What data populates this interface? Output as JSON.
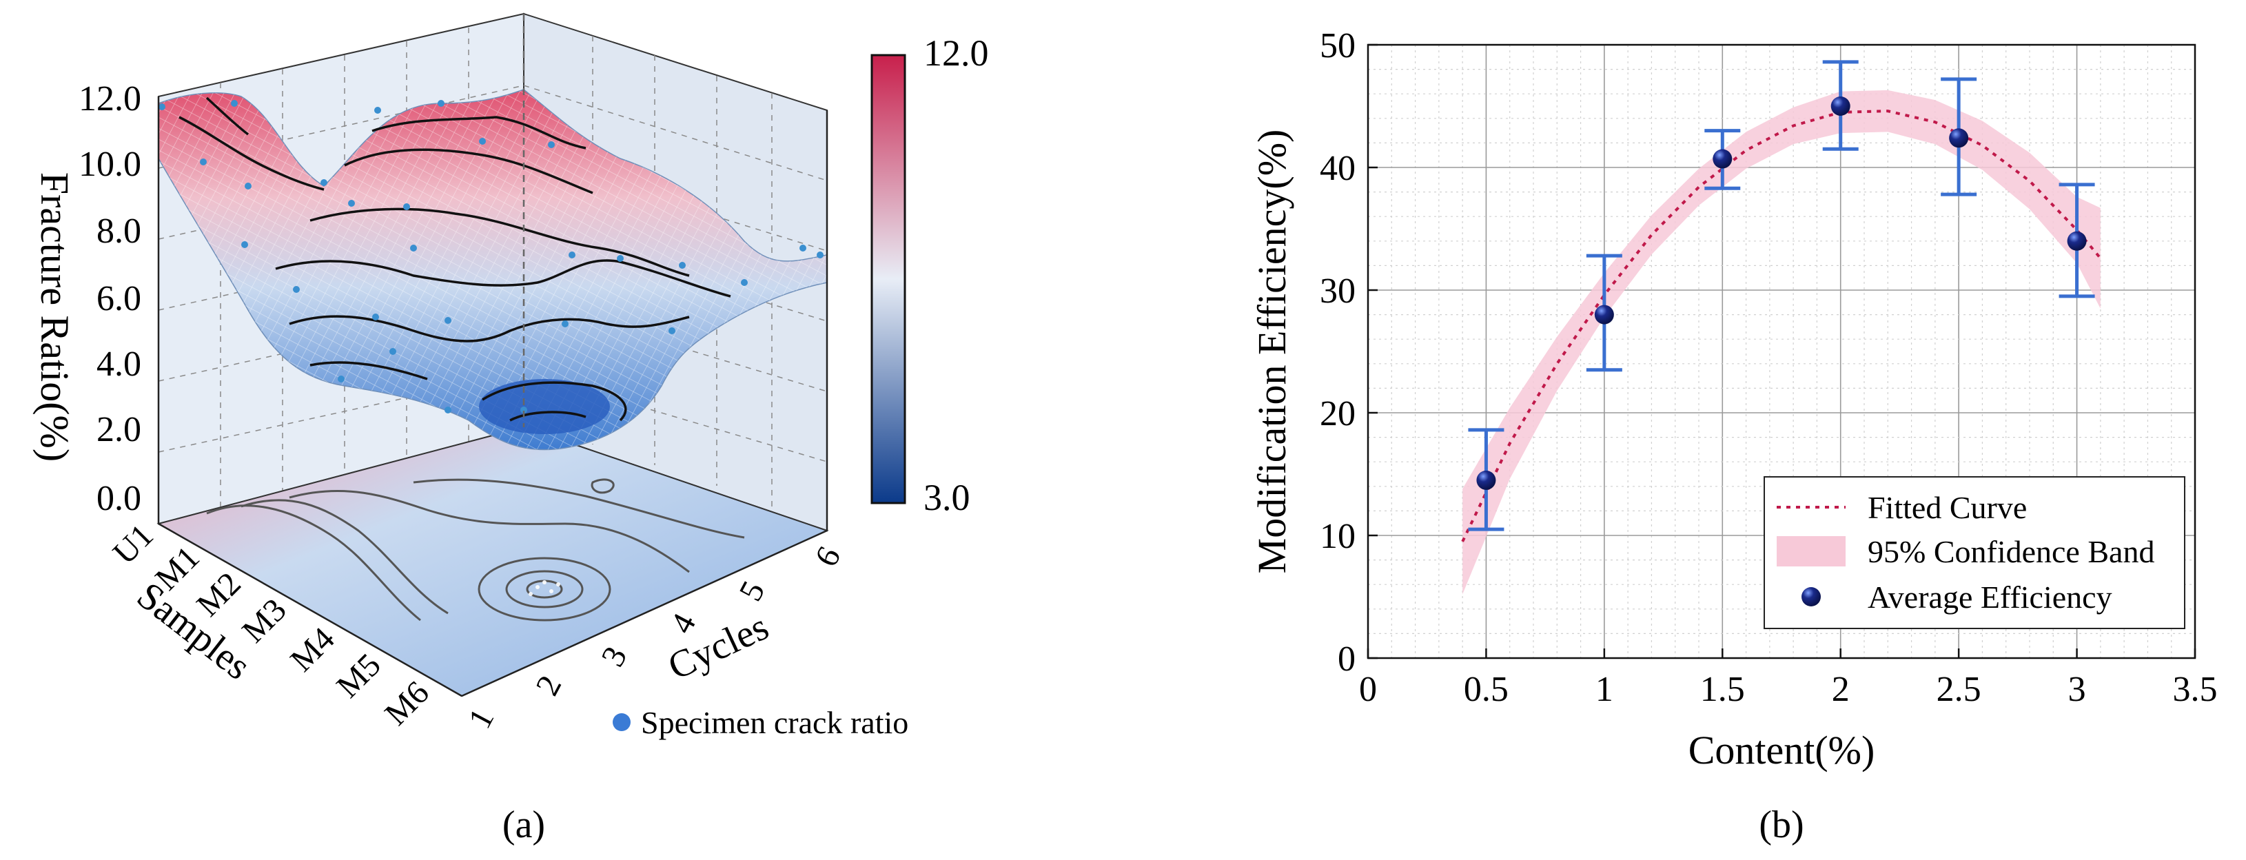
{
  "panels": {
    "a": {
      "label": "(a)",
      "zlabel": "Fracture Ratio(%)",
      "x_axis_label": "Cycles",
      "y_axis_label": "Samples",
      "z_ticks": [
        "0.0",
        "2.0",
        "4.0",
        "6.0",
        "8.0",
        "10.0",
        "12.0"
      ],
      "x_ticks": [
        "1",
        "2",
        "3",
        "4",
        "5",
        "6"
      ],
      "y_ticks": [
        "U1",
        "M1",
        "M2",
        "M3",
        "M4",
        "M5",
        "M6"
      ],
      "colorbar": {
        "min_label": "3.0",
        "max_label": "12.0",
        "min": 3.0,
        "max": 12.0,
        "color_low": "#0b3a8a",
        "color_mid": "#e8edf6",
        "color_high": "#c8204c"
      },
      "legend": {
        "label": "Specimen crack ratio",
        "color": "#3a7bd5"
      }
    },
    "b": {
      "label": "(b)",
      "legend": {
        "fitted": "Fitted Curve",
        "band": "95% Confidence Band",
        "points": "Average Efficiency"
      }
    }
  },
  "chart_data": [
    {
      "type": "surface3d",
      "title": "",
      "zlabel": "Fracture Ratio(%)",
      "xlabel": "Cycles",
      "ylabel": "Samples",
      "x": [
        1,
        2,
        3,
        4,
        5,
        6
      ],
      "y": [
        "U1",
        "M1",
        "M2",
        "M3",
        "M4",
        "M5",
        "M6"
      ],
      "z_range": [
        0,
        12
      ],
      "colorbar_range": [
        3,
        12
      ],
      "z_approx": [
        [
          11.5,
          11.0,
          10.5,
          10.8,
          11.3,
          11.5
        ],
        [
          11.0,
          9.0,
          7.5,
          8.5,
          10.5,
          11.2
        ],
        [
          9.5,
          6.5,
          5.5,
          6.0,
          8.0,
          10.0
        ],
        [
          8.0,
          5.5,
          4.5,
          5.0,
          6.0,
          8.0
        ],
        [
          7.0,
          5.0,
          3.5,
          4.5,
          5.5,
          7.0
        ],
        [
          6.5,
          5.0,
          3.5,
          4.0,
          5.0,
          6.5
        ],
        [
          6.5,
          6.0,
          4.0,
          5.5,
          6.0,
          6.5
        ]
      ],
      "legend": [
        "Specimen crack ratio"
      ]
    },
    {
      "type": "scatter",
      "title": "",
      "xlabel": "Content(%)",
      "ylabel": "Modification Efficiency(%)",
      "xlim": [
        0,
        3.5
      ],
      "ylim": [
        0,
        50
      ],
      "xticks": [
        "0",
        "0.5",
        "1",
        "1.5",
        "2",
        "2.5",
        "3",
        "3.5"
      ],
      "yticks": [
        "0",
        "10",
        "20",
        "30",
        "40",
        "50"
      ],
      "grid": true,
      "legend_position": "bottom-right",
      "series": [
        {
          "name": "Average Efficiency",
          "x": [
            0.5,
            1.0,
            1.5,
            2.0,
            2.5,
            3.0
          ],
          "y": [
            14.5,
            28.0,
            40.7,
            45.0,
            42.4,
            34.0
          ],
          "error_low": [
            10.5,
            23.5,
            38.3,
            41.5,
            37.8,
            29.5
          ],
          "error_high": [
            18.6,
            32.8,
            43.0,
            48.6,
            47.2,
            38.6
          ]
        },
        {
          "name": "Fitted Curve",
          "x": [
            0.4,
            0.6,
            0.8,
            1.0,
            1.2,
            1.4,
            1.6,
            1.8,
            2.0,
            2.2,
            2.4,
            2.6,
            2.8,
            3.0,
            3.1
          ],
          "y": [
            9.5,
            17.5,
            24.0,
            29.6,
            34.5,
            38.4,
            41.4,
            43.4,
            44.5,
            44.6,
            43.7,
            41.8,
            38.9,
            34.9,
            32.6
          ]
        },
        {
          "name": "95% Confidence Band",
          "x": [
            0.4,
            0.6,
            0.8,
            1.0,
            1.2,
            1.4,
            1.6,
            1.8,
            2.0,
            2.2,
            2.4,
            2.6,
            2.8,
            3.0,
            3.1
          ],
          "low": [
            5.2,
            14.6,
            21.8,
            27.8,
            32.9,
            36.9,
            39.9,
            41.9,
            42.8,
            42.9,
            41.9,
            39.8,
            36.6,
            32.2,
            28.5
          ],
          "high": [
            13.8,
            20.4,
            26.2,
            31.4,
            36.1,
            39.9,
            42.9,
            44.9,
            46.2,
            46.3,
            45.5,
            43.8,
            41.2,
            37.6,
            36.7
          ]
        }
      ],
      "colors": {
        "points": "#1a2a7a",
        "error": "#3a6fd0",
        "curve": "#c0194a",
        "band": "#f7c9d8"
      }
    }
  ]
}
